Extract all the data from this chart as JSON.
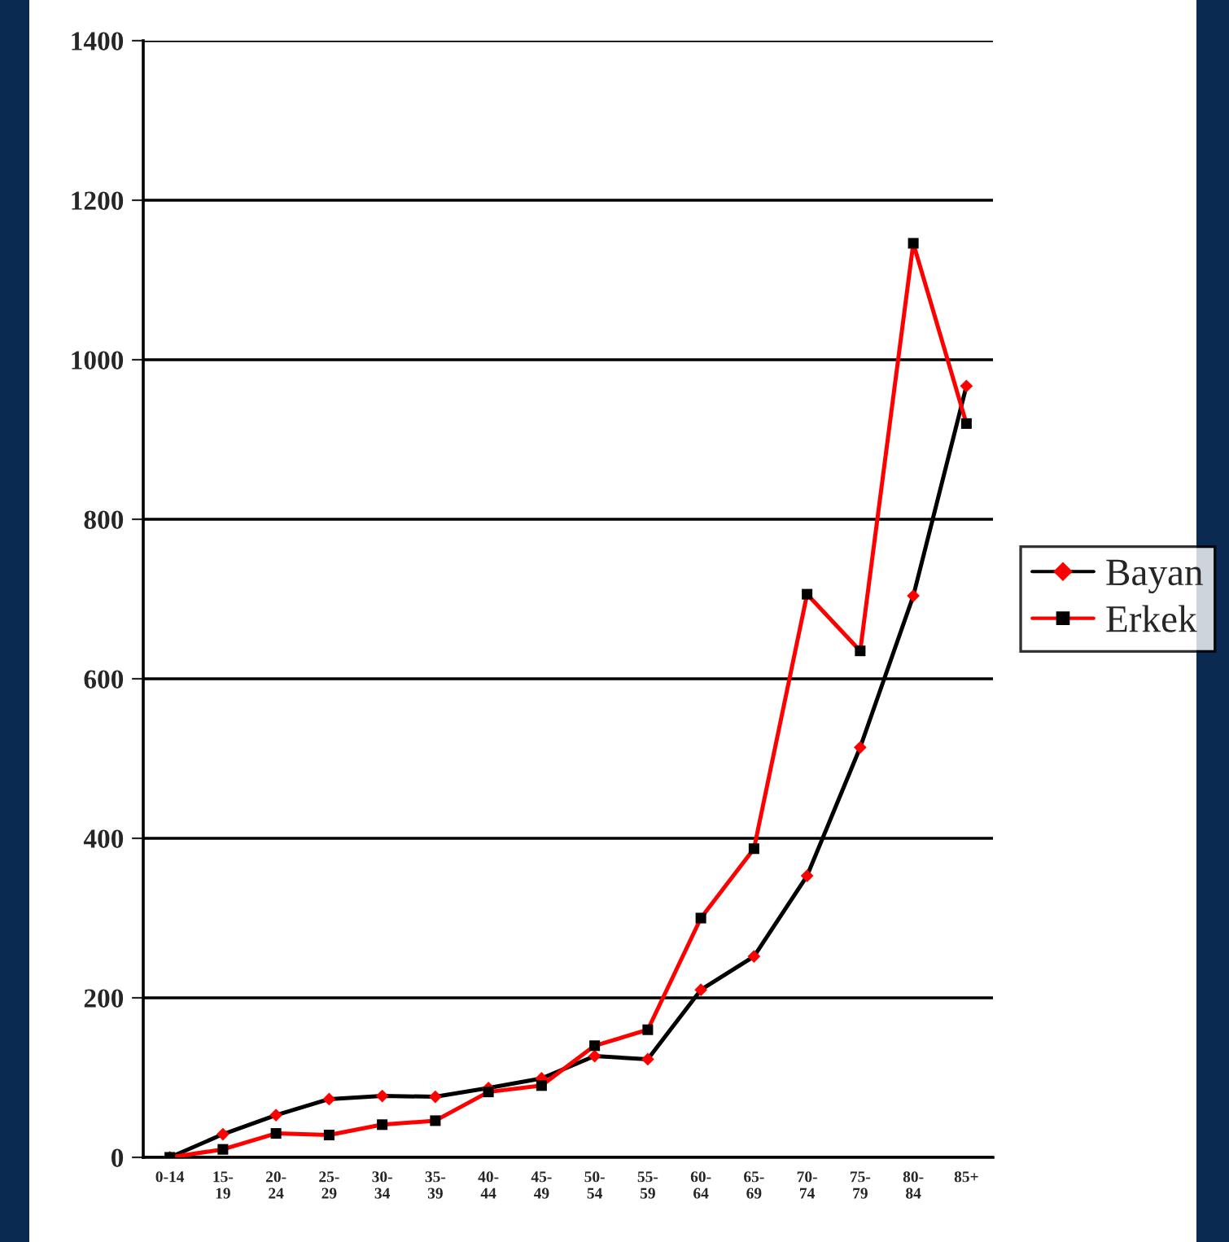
{
  "chart_data": {
    "type": "line",
    "categories": [
      "0-14",
      "15-\n19",
      "20-\n24",
      "25-\n29",
      "30-\n34",
      "35-\n39",
      "40-\n44",
      "45-\n49",
      "50-\n54",
      "55-\n59",
      "60-\n64",
      "65-\n69",
      "70-\n74",
      "75-\n79",
      "80-\n84",
      "85+"
    ],
    "series": [
      {
        "name": "Bayan",
        "color": "#000000",
        "marker": "diamond",
        "colors": [
          "#ff0000",
          "#ff0000",
          "#ff0000",
          "#ff0000",
          "#ff0000",
          "#ff0000",
          "#ff0000",
          "#ff0000",
          "#ff0000",
          "#ff0000",
          "#ff0000",
          "#ff0000",
          "#ff0000",
          "#ff0000",
          "#ff0000",
          "#ff0000"
        ],
        "values": [
          0,
          29,
          53,
          73,
          77,
          76,
          87,
          99,
          127,
          123,
          210,
          252,
          353,
          514,
          704,
          967
        ]
      },
      {
        "name": "Erkek",
        "color": "#ff0000",
        "marker": "square",
        "colors": [
          "#000000",
          "#000000",
          "#000000",
          "#000000",
          "#000000",
          "#000000",
          "#000000",
          "#000000",
          "#000000",
          "#000000",
          "#000000",
          "#000000",
          "#000000",
          "#000000",
          "#000000",
          "#000000"
        ],
        "values": [
          0,
          10,
          30,
          28,
          41,
          46,
          82,
          90,
          140,
          160,
          300,
          387,
          706,
          635,
          1146,
          920
        ]
      }
    ],
    "ylim": [
      0,
      1400
    ],
    "yticks": [
      0,
      200,
      400,
      600,
      800,
      1000,
      1200,
      1400
    ],
    "grid": "y",
    "legend": "right",
    "line_style": "solid"
  }
}
